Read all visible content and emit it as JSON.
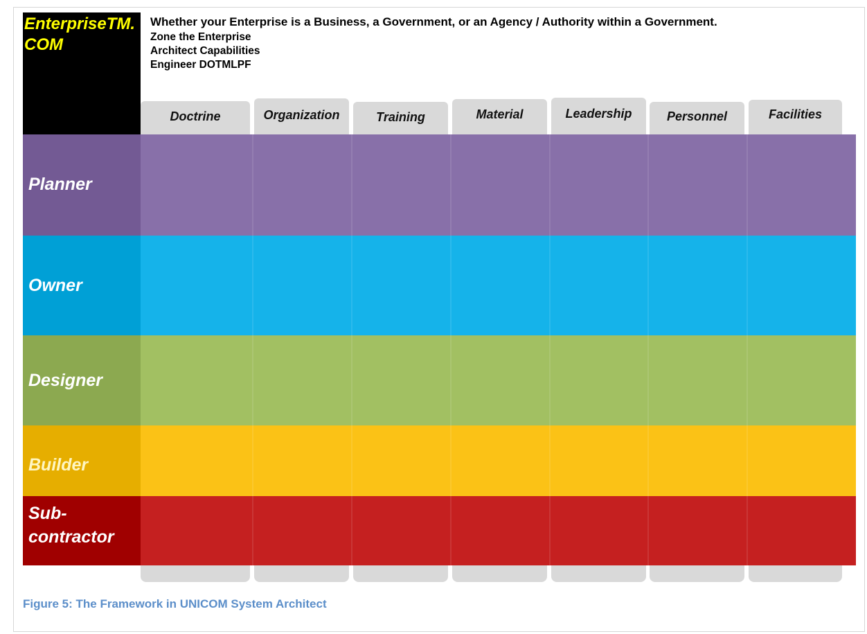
{
  "logo": {
    "text": "EnterpriseTM.\nCOM",
    "color": "#ffff00"
  },
  "header": {
    "headline": "Whether your Enterprise is a Business, a Government, or an Agency / Authority within a Government.",
    "lines": [
      "Zone the Enterprise",
      "Architect Capabilities",
      "Engineer DOTMLPF"
    ]
  },
  "columns": [
    {
      "label": "Doctrine"
    },
    {
      "label": "Organization"
    },
    {
      "label": "Training"
    },
    {
      "label": "Material"
    },
    {
      "label": "Leadership"
    },
    {
      "label": "Personnel"
    },
    {
      "label": "Facilities"
    }
  ],
  "rows": [
    {
      "label": "Planner",
      "head_color": "#735a94",
      "body_color": "#8870a9"
    },
    {
      "label": "Owner",
      "head_color": "#00a0d6",
      "body_color": "#15b3ea"
    },
    {
      "label": "Designer",
      "head_color": "#8ca950",
      "body_color": "#a2c062"
    },
    {
      "label": "Builder",
      "head_color": "#e6ae00",
      "body_color": "#fbc216",
      "label_color": "#fff6c2"
    },
    {
      "label": "Sub-\ncontractor",
      "head_color": "#a00000",
      "body_color": "#c52020"
    }
  ],
  "caption": "Figure 5: The Framework in UNICOM System Architect"
}
